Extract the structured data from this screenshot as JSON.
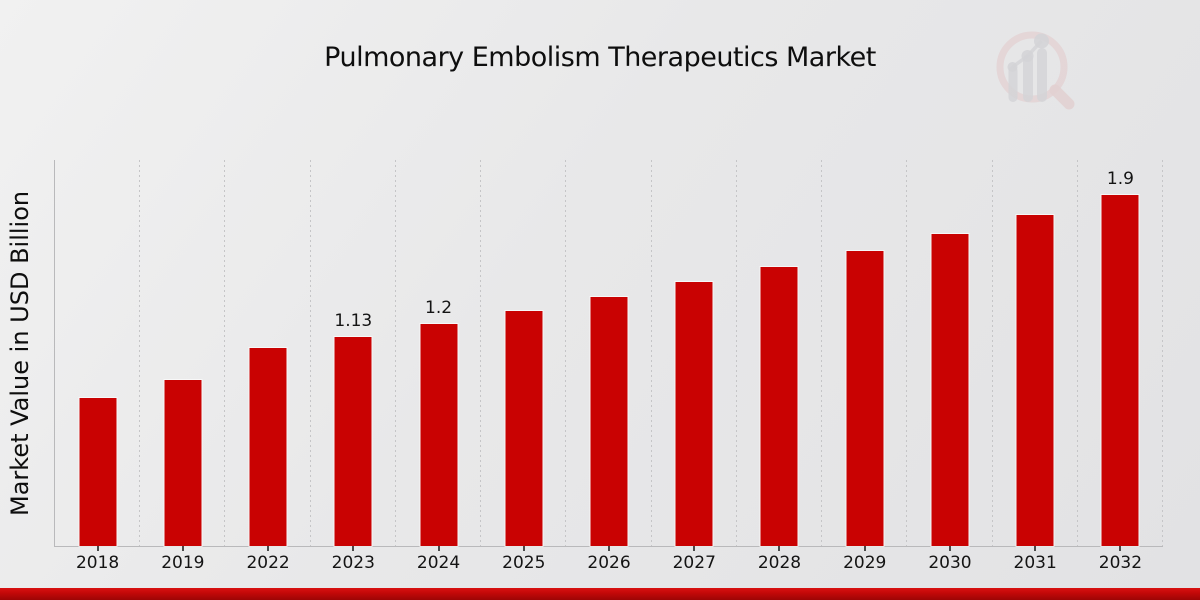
{
  "chart_data": {
    "type": "bar",
    "title": "Pulmonary Embolism Therapeutics Market",
    "xlabel": "",
    "ylabel": "Market Value in USD Billion",
    "categories": [
      "2018",
      "2019",
      "2022",
      "2023",
      "2024",
      "2025",
      "2026",
      "2027",
      "2028",
      "2029",
      "2030",
      "2031",
      "2032"
    ],
    "values": [
      0.8,
      0.9,
      1.07,
      1.13,
      1.2,
      1.27,
      1.35,
      1.43,
      1.51,
      1.6,
      1.69,
      1.79,
      1.9
    ],
    "bar_labels": [
      "",
      "",
      "",
      "1.13",
      "1.2",
      "",
      "",
      "",
      "",
      "",
      "",
      "",
      "1.9"
    ],
    "ylim": [
      0,
      2.09
    ],
    "grid": "vertical dotted gridlines at category boundaries",
    "legend_position": "none",
    "bar_color": "#c90202",
    "bar_outline_color": "#ffffff",
    "axis_color": "#b9b9bb",
    "label_color": "#141414"
  },
  "footer": {
    "accent_color_top": "#d81111",
    "accent_color_bottom": "#9c0505"
  },
  "logo": {
    "icon": "magnifier-bar-chart-logo",
    "ring_color": "#dfb6b6",
    "bars_color": "#bfbfc4"
  }
}
